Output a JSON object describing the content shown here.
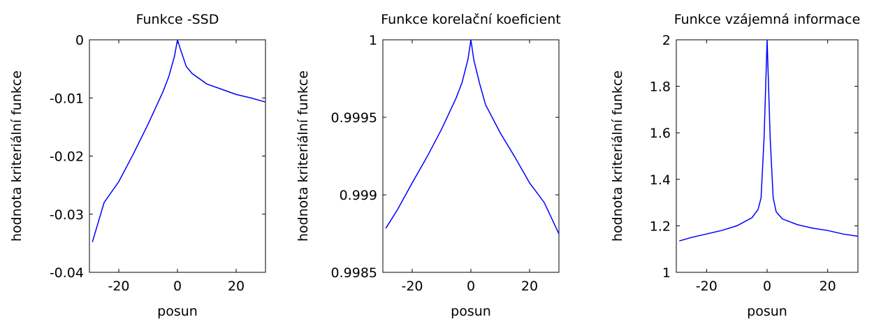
{
  "chart_data": [
    {
      "type": "line",
      "title": "Funkce -SSD",
      "xlabel": "posun",
      "ylabel": "hodnota kriteriální funkce",
      "x": [
        -29,
        -25,
        -20,
        -15,
        -10,
        -5,
        -3,
        -1,
        0,
        1,
        3,
        5,
        10,
        15,
        20,
        25,
        30
      ],
      "values": [
        -0.0348,
        -0.028,
        -0.0244,
        -0.0196,
        -0.0145,
        -0.009,
        -0.0064,
        -0.0028,
        0,
        -0.0016,
        -0.0046,
        -0.0058,
        -0.0076,
        -0.0085,
        -0.0094,
        -0.01,
        -0.0107
      ],
      "color": "#0000ff",
      "xlim": [
        -30,
        30
      ],
      "xticks": [
        -20,
        0,
        20
      ],
      "ylim": [
        -0.04,
        0
      ],
      "yticks": [
        -0.04,
        -0.03,
        -0.02,
        -0.01,
        0
      ]
    },
    {
      "type": "line",
      "title": "Funkce korelační koeficient",
      "xlabel": "posun",
      "ylabel": "hodnota kriteriální funkce",
      "x": [
        -29,
        -25,
        -20,
        -15,
        -10,
        -5,
        -3,
        -1,
        0,
        1,
        3,
        5,
        10,
        15,
        20,
        25,
        30
      ],
      "values": [
        0.998784,
        0.998905,
        0.999077,
        0.999243,
        0.999423,
        0.999626,
        0.999725,
        0.999874,
        1,
        0.99987,
        0.999716,
        0.999581,
        0.9994,
        0.999243,
        0.999077,
        0.99895,
        0.998748
      ],
      "color": "#0000ff",
      "xlim": [
        -30,
        30
      ],
      "xticks": [
        -20,
        0,
        20
      ],
      "ylim": [
        0.9985,
        1
      ],
      "yticks": [
        0.9985,
        0.999,
        0.9995,
        1
      ]
    },
    {
      "type": "line",
      "title": "Funkce vzájemná informace",
      "xlabel": "posun",
      "ylabel": "hodnota kriteriální funkce",
      "x": [
        -29,
        -25,
        -20,
        -15,
        -10,
        -5,
        -3,
        -2,
        -1,
        0,
        1,
        2,
        3,
        5,
        10,
        15,
        20,
        25,
        30
      ],
      "values": [
        1.135,
        1.15,
        1.165,
        1.18,
        1.2,
        1.235,
        1.27,
        1.32,
        1.58,
        2,
        1.58,
        1.32,
        1.26,
        1.23,
        1.205,
        1.19,
        1.18,
        1.165,
        1.155
      ],
      "color": "#0000ff",
      "xlim": [
        -30,
        30
      ],
      "xticks": [
        -20,
        0,
        20
      ],
      "ylim": [
        1,
        2
      ],
      "yticks": [
        1,
        1.2,
        1.4,
        1.6,
        1.8,
        2
      ]
    }
  ]
}
